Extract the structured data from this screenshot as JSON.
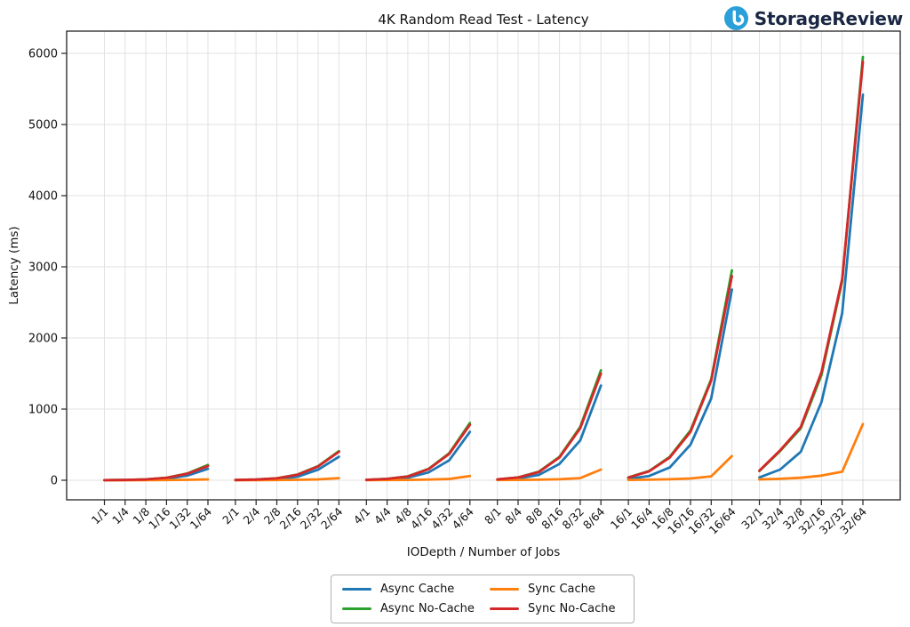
{
  "header": {
    "brand": {
      "name": "StorageReview",
      "icon": "storagereview-circle-icon",
      "icon_color": "#2b9fd8",
      "text_color": "#1a2744"
    }
  },
  "chart_data": {
    "type": "line",
    "title": "4K Random Read Test - Latency",
    "xlabel": "IODepth / Number of Jobs",
    "ylabel": "Latency (ms)",
    "ylim": [
      0,
      6000
    ],
    "yticks": [
      0,
      1000,
      2000,
      3000,
      4000,
      5000,
      6000
    ],
    "grid": true,
    "grid_color": "#e2e2e2",
    "axis_color": "#222222",
    "group_size": 6,
    "categories": [
      "1/1",
      "1/4",
      "1/8",
      "1/16",
      "1/32",
      "1/64",
      "2/1",
      "2/4",
      "2/8",
      "2/16",
      "2/32",
      "2/64",
      "4/1",
      "4/4",
      "4/8",
      "4/16",
      "4/32",
      "4/64",
      "8/1",
      "8/4",
      "8/8",
      "8/16",
      "8/32",
      "8/64",
      "16/1",
      "16/4",
      "16/8",
      "16/16",
      "16/32",
      "16/64",
      "32/1",
      "32/4",
      "32/8",
      "32/16",
      "32/32",
      "32/64"
    ],
    "series": [
      {
        "name": "Async Cache",
        "color": "#1f77b4",
        "values": [
          2,
          3,
          6,
          20,
          65,
          160,
          3,
          6,
          15,
          50,
          150,
          330,
          4,
          12,
          35,
          110,
          280,
          680,
          8,
          25,
          75,
          230,
          560,
          1330,
          20,
          60,
          180,
          500,
          1150,
          2680,
          40,
          150,
          400,
          1100,
          2350,
          5420
        ]
      },
      {
        "name": "Async No-Cache",
        "color": "#2ca02c",
        "values": [
          2,
          5,
          12,
          35,
          95,
          215,
          4,
          10,
          28,
          80,
          200,
          410,
          6,
          20,
          55,
          160,
          380,
          805,
          12,
          40,
          120,
          330,
          750,
          1545,
          40,
          130,
          330,
          700,
          1420,
          2950,
          130,
          410,
          730,
          1480,
          2800,
          5950
        ]
      },
      {
        "name": "Sync Cache",
        "color": "#ff7f0e",
        "values": [
          1,
          1,
          2,
          3,
          6,
          12,
          1,
          2,
          3,
          6,
          12,
          30,
          2,
          3,
          5,
          9,
          18,
          60,
          3,
          5,
          8,
          14,
          30,
          150,
          5,
          8,
          14,
          25,
          55,
          340,
          12,
          20,
          35,
          65,
          120,
          790
        ]
      },
      {
        "name": "Sync No-Cache",
        "color": "#d62728",
        "values": [
          2,
          5,
          12,
          34,
          92,
          200,
          4,
          10,
          27,
          78,
          195,
          400,
          6,
          19,
          53,
          155,
          370,
          780,
          12,
          39,
          115,
          320,
          730,
          1500,
          38,
          125,
          320,
          680,
          1400,
          2870,
          135,
          420,
          750,
          1520,
          2830,
          5880
        ]
      }
    ],
    "legend": {
      "position": "bottom-center",
      "columns": 2,
      "entries": [
        "Async Cache",
        "Async No-Cache",
        "Sync Cache",
        "Sync No-Cache"
      ]
    }
  }
}
